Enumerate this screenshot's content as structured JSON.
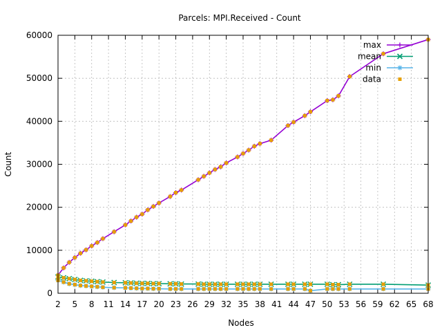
{
  "chart_data": {
    "type": "line",
    "title": "Parcels: MPI.Received - Count",
    "xlabel": "Nodes",
    "ylabel": "Count",
    "xlim": [
      2,
      68
    ],
    "ylim": [
      0,
      60000
    ],
    "xticks": [
      2,
      5,
      8,
      11,
      14,
      17,
      20,
      23,
      26,
      29,
      32,
      35,
      38,
      41,
      44,
      47,
      50,
      53,
      56,
      59,
      62,
      65,
      68
    ],
    "yticks": [
      0,
      10000,
      20000,
      30000,
      40000,
      50000,
      60000
    ],
    "grid": true,
    "legend_position": "top-right",
    "x": [
      2,
      3,
      4,
      5,
      6,
      7,
      8,
      9,
      10,
      12,
      14,
      15,
      16,
      17,
      18,
      19,
      20,
      22,
      23,
      24,
      27,
      28,
      29,
      30,
      31,
      32,
      34,
      35,
      36,
      37,
      38,
      40,
      43,
      44,
      46,
      47,
      50,
      51,
      52,
      54,
      60,
      68
    ],
    "series": [
      {
        "name": "max",
        "color": "#9400d3",
        "marker": "plus",
        "values": [
          4200,
          5900,
          7200,
          8300,
          9300,
          10100,
          11000,
          11800,
          12700,
          14300,
          15900,
          16800,
          17700,
          18400,
          19400,
          20200,
          21000,
          22500,
          23400,
          24000,
          26400,
          27200,
          28000,
          28800,
          29400,
          30300,
          31700,
          32500,
          33300,
          34200,
          34800,
          35600,
          39000,
          39800,
          41300,
          42200,
          44800,
          45000,
          45900,
          50400,
          55700,
          59000
        ]
      },
      {
        "name": "mean",
        "color": "#009e73",
        "marker": "x",
        "values": [
          3800,
          3600,
          3400,
          3200,
          3000,
          2900,
          2800,
          2700,
          2600,
          2500,
          2450,
          2400,
          2350,
          2300,
          2300,
          2250,
          2250,
          2200,
          2200,
          2150,
          2150,
          2100,
          2100,
          2100,
          2100,
          2100,
          2100,
          2100,
          2100,
          2100,
          2100,
          2100,
          2100,
          2100,
          2100,
          2100,
          2100,
          2000,
          2000,
          2100,
          2100,
          1900
        ]
      },
      {
        "name": "min",
        "color": "#56b4e9",
        "marker": "star",
        "values": [
          3000,
          2600,
          2200,
          2000,
          1800,
          1700,
          1600,
          1500,
          1400,
          1300,
          1250,
          1200,
          1150,
          1100,
          1100,
          1050,
          1050,
          1000,
          1000,
          1000,
          1000,
          1000,
          1000,
          1000,
          1000,
          1000,
          1000,
          1000,
          1000,
          1000,
          1000,
          1000,
          1000,
          1000,
          1000,
          600,
          1000,
          1000,
          1000,
          1000,
          1000,
          1000
        ]
      }
    ],
    "data_points": {
      "name": "data",
      "color": "#e69f00",
      "marker": "square",
      "note_series_source": "max, mean, min"
    }
  }
}
